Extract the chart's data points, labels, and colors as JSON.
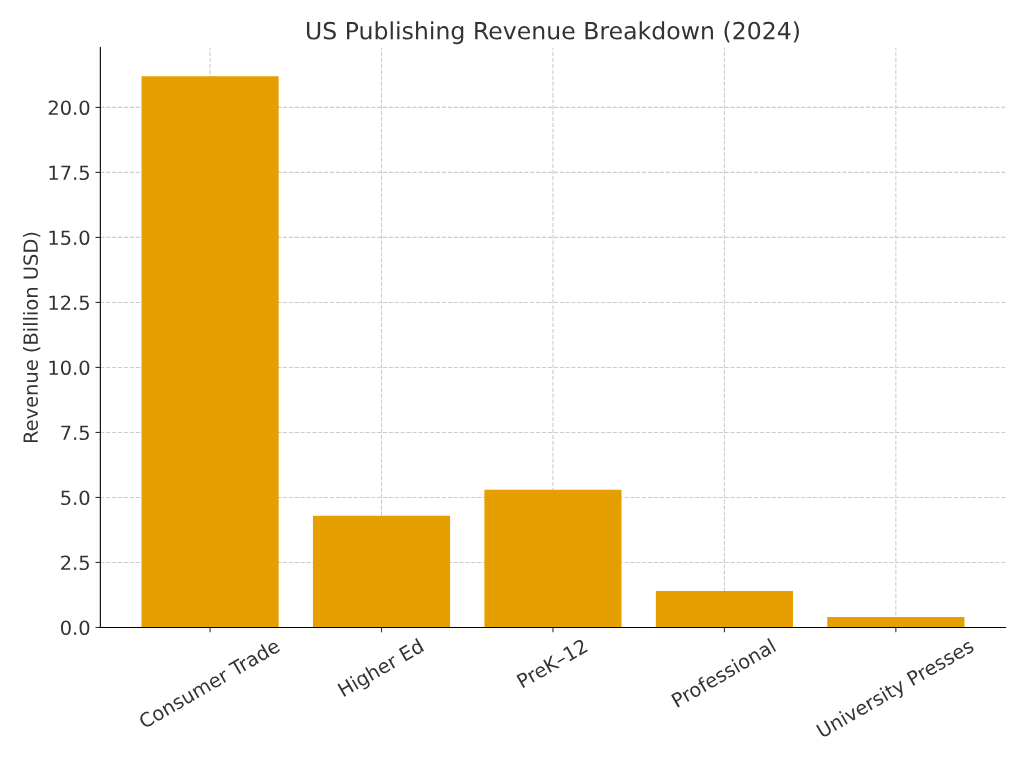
{
  "chart_data": {
    "type": "bar",
    "title": "US Publishing Revenue Breakdown (2024)",
    "ylabel": "Revenue (Billion USD)",
    "categories": [
      "Consumer Trade",
      "Higher Ed",
      "PreK–12",
      "Professional",
      "University Presses"
    ],
    "values": [
      21.2,
      4.3,
      5.3,
      1.4,
      0.4
    ],
    "color": "#e69f00",
    "ylim": [
      0,
      22.3
    ],
    "yticks": [
      {
        "value": 0,
        "label": "0.0"
      },
      {
        "value": 2.5,
        "label": "2.5"
      },
      {
        "value": 5,
        "label": "5.0"
      },
      {
        "value": 7.5,
        "label": "7.5"
      },
      {
        "value": 10,
        "label": "10.0"
      },
      {
        "value": 12.5,
        "label": "12.5"
      },
      {
        "value": 15,
        "label": "15.0"
      },
      {
        "value": 17.5,
        "label": "17.5"
      },
      {
        "value": 20,
        "label": "20.0"
      }
    ],
    "grid": true,
    "line_style": "dashed"
  }
}
